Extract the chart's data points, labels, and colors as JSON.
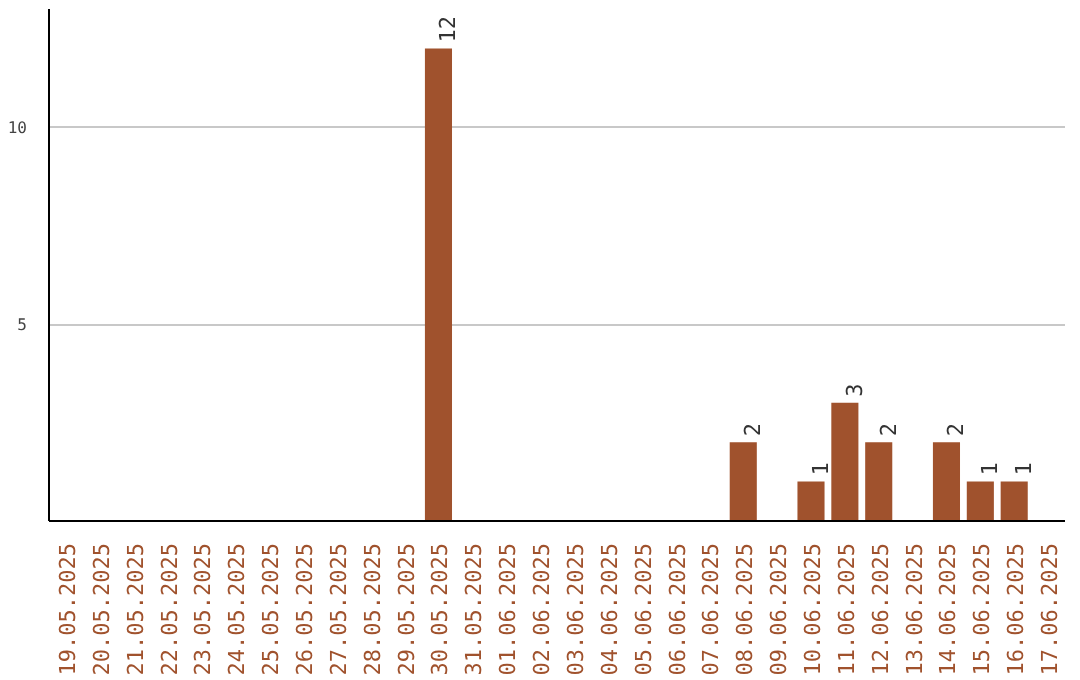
{
  "chart_data": {
    "type": "bar",
    "categories": [
      "19.05.2025",
      "20.05.2025",
      "21.05.2025",
      "22.05.2025",
      "23.05.2025",
      "24.05.2025",
      "25.05.2025",
      "26.05.2025",
      "27.05.2025",
      "28.05.2025",
      "29.05.2025",
      "30.05.2025",
      "31.05.2025",
      "01.06.2025",
      "02.06.2025",
      "03.06.2025",
      "04.06.2025",
      "05.06.2025",
      "06.06.2025",
      "07.06.2025",
      "08.06.2025",
      "09.06.2025",
      "10.06.2025",
      "11.06.2025",
      "12.06.2025",
      "13.06.2025",
      "14.06.2025",
      "15.06.2025",
      "16.06.2025",
      "17.06.2025"
    ],
    "values": [
      0,
      0,
      0,
      0,
      0,
      0,
      0,
      0,
      0,
      0,
      0,
      12,
      0,
      0,
      0,
      0,
      0,
      0,
      0,
      0,
      2,
      0,
      1,
      3,
      2,
      0,
      2,
      1,
      1,
      0
    ],
    "value_labels": [
      null,
      null,
      null,
      null,
      null,
      null,
      null,
      null,
      null,
      null,
      null,
      "12",
      null,
      null,
      null,
      null,
      null,
      null,
      null,
      null,
      "2",
      null,
      "1",
      "3",
      "2",
      null,
      "2",
      "1",
      "1",
      null
    ],
    "color": "#a0522d",
    "ylim": [
      0,
      13
    ],
    "yticks": [
      5,
      10
    ],
    "grid": "y"
  }
}
